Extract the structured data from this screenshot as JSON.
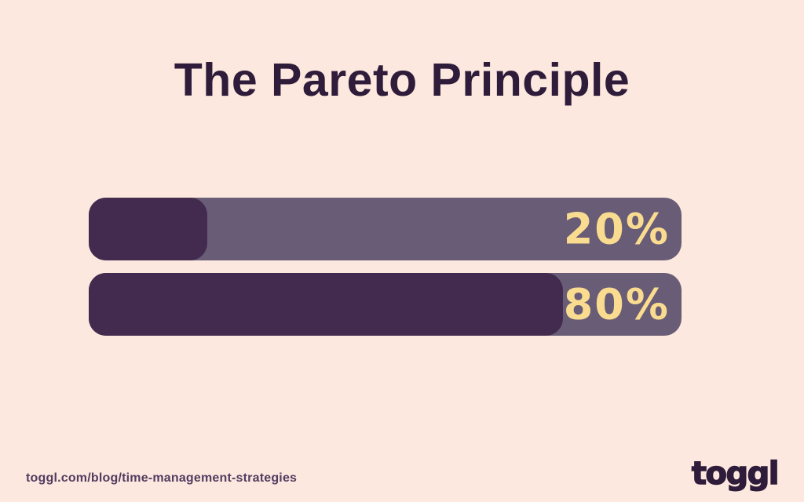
{
  "title": "The Pareto Principle",
  "chart_data": {
    "type": "bar",
    "orientation": "horizontal",
    "title": "The Pareto Principle",
    "values": [
      20,
      80
    ],
    "labels": [
      "20%",
      "80%"
    ],
    "xlim": [
      0,
      100
    ],
    "grid": false,
    "axes_visible": false,
    "value_label_position": "inside-right"
  },
  "colors": {
    "background": "#fce8de",
    "bar_track": "#695c76",
    "bar_fill": "#422b4e",
    "value_label": "#fadc90",
    "title_text": "#2e1c3a",
    "footer_text": "#533c61"
  },
  "footer": {
    "url": "toggl.com/blog/time-management-strategies",
    "logo": "toggl"
  }
}
